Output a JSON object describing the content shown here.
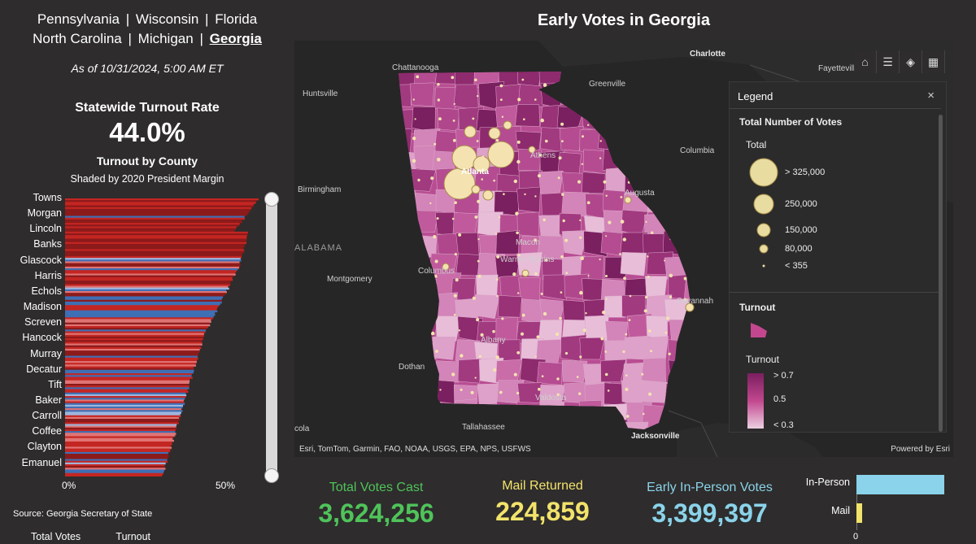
{
  "nav": {
    "states_row1": [
      "Pennsylvania",
      "Wisconsin",
      "Florida"
    ],
    "states_row2": [
      "North Carolina",
      "Michigan",
      "Georgia"
    ],
    "separator": "|",
    "active_state": "Georgia"
  },
  "as_of": "As of 10/31/2024, 5:00 AM ET",
  "turnout": {
    "title": "Statewide Turnout Rate",
    "rate": "44.0%",
    "by_county_title": "Turnout by County",
    "shaded_by": "Shaded by 2020 President Margin"
  },
  "county_labels": [
    "Towns",
    "Morgan",
    "Lincoln",
    "Banks",
    "Glascock",
    "Harris",
    "Echols",
    "Madison",
    "Screven",
    "Hancock",
    "Murray",
    "Decatur",
    "Tift",
    "Baker",
    "Carroll",
    "Coffee",
    "Clayton",
    "Emanuel"
  ],
  "county_chart": {
    "x_ticks": [
      "0%",
      "50%"
    ],
    "scroll_position": 0.0
  },
  "source": "Source: Georgia Secretary of State",
  "bottom_tabs": [
    "Total Votes",
    "Turnout"
  ],
  "map": {
    "title": "Early Votes in Georgia",
    "attribution": "Esri, TomTom, Garmin, FAO, NOAA, USGS, EPA, NPS, USFWS",
    "powered_by": "Powered by Esri",
    "places": [
      "Chattanooga",
      "Charlotte",
      "Fayettevill",
      "Huntsville",
      "Greenville",
      "Athens",
      "Columbia",
      "Birmingham",
      "Atlanta",
      "Augusta",
      "ALABAMA",
      "Macon",
      "Warner Robins",
      "Columbus",
      "Montgomery",
      "Savannah",
      "Albany",
      "Dothan",
      "Valdosta",
      "Tallahassee",
      "Jacksonville",
      "cola"
    ],
    "tools": [
      "home-icon",
      "list-icon",
      "layers-icon",
      "qr-icon"
    ]
  },
  "legend": {
    "header": "Legend",
    "close": "×",
    "section1": "Total Number of Votes",
    "subtitle1": "Total",
    "sizes": [
      "> 325,000",
      "250,000",
      "150,000",
      "80,000",
      "< 355"
    ],
    "section2": "Turnout",
    "subtitle2": "Turnout",
    "ramp": [
      "> 0.7",
      "0.5",
      "< 0.3"
    ]
  },
  "stats": {
    "total_label": "Total Votes Cast",
    "total_value": "3,624,256",
    "mail_label": "Mail Returned",
    "mail_value": "224,859",
    "inperson_label": "Early In-Person Votes",
    "inperson_value": "3,399,397"
  },
  "method_chart": {
    "labels": [
      "In-Person",
      "Mail"
    ],
    "values": [
      3399397,
      224859
    ],
    "axis_min": "0",
    "colors": [
      "#8ad3ea",
      "#f2e36b"
    ]
  },
  "colors": {
    "green": "#4fc35a",
    "yellow": "#f2e36b",
    "blue": "#8ad3ea",
    "dark_red": "#8c1a1a",
    "red": "#c42622",
    "blue_bar": "#3f6fb5"
  }
}
